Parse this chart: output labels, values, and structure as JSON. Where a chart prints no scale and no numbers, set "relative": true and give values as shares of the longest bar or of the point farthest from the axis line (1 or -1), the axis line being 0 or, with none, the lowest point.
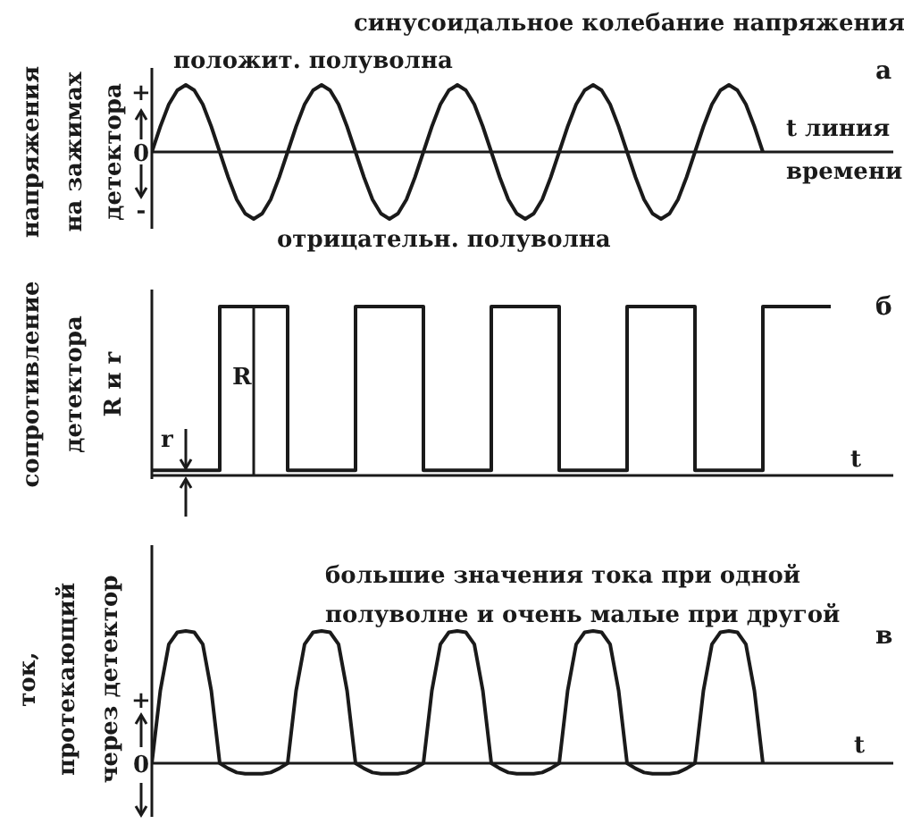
{
  "chart_data": [
    {
      "type": "line",
      "title": "синусоидальное колебание напряжения",
      "ylabel": "напряжения\nна зажимах\nдетектора",
      "xlabel": "t линия\nвремени",
      "relative": true,
      "annotations": [
        "а",
        "положит. полуволна",
        "отрицательн. полуволна",
        "+",
        "0",
        "-"
      ],
      "categories": [
        null,
        null,
        null,
        null,
        null,
        null,
        null,
        null,
        null,
        null,
        null,
        null,
        null,
        null,
        null,
        null,
        null,
        null,
        null,
        null,
        null,
        null,
        null,
        null,
        null,
        null,
        null,
        null,
        null,
        null,
        null,
        null,
        null,
        null,
        null,
        null,
        null,
        null,
        null,
        null,
        null,
        null,
        null,
        null,
        null,
        null,
        null,
        null,
        null,
        null,
        null,
        null,
        null,
        null,
        null,
        null,
        null,
        null,
        null,
        null,
        null,
        null,
        null,
        null,
        null,
        null,
        null,
        null,
        null,
        null,
        null,
        null,
        null
      ],
      "series": [
        {
          "color": "#1a1a1a",
          "values": [
            0,
            0.38,
            0.71,
            0.92,
            1,
            0.92,
            0.71,
            0.38,
            0,
            -0.38,
            -0.71,
            -0.92,
            -1,
            -0.92,
            -0.71,
            -0.38,
            0,
            0.38,
            0.71,
            0.92,
            1,
            0.92,
            0.71,
            0.38,
            0,
            -0.38,
            -0.71,
            -0.92,
            -1,
            -0.92,
            -0.71,
            -0.38,
            0,
            0.38,
            0.71,
            0.92,
            1,
            0.92,
            0.71,
            0.38,
            0,
            -0.38,
            -0.71,
            -0.92,
            -1,
            -0.92,
            -0.71,
            -0.38,
            0,
            0.38,
            0.71,
            0.92,
            1,
            0.92,
            0.71,
            0.38,
            0,
            -0.38,
            -0.71,
            -0.92,
            -1,
            -0.92,
            -0.71,
            -0.38,
            0,
            0.38,
            0.71,
            0.92,
            1,
            0.92,
            0.71,
            0.38,
            0
          ]
        }
      ]
    },
    {
      "type": "step",
      "ylabel": "сопротивление\nдетектора\nR и r",
      "xlabel": "t",
      "relative": true,
      "annotations": [
        "б",
        "R",
        "r"
      ],
      "categories": [
        null,
        null,
        null,
        null,
        null,
        null,
        null,
        null,
        null,
        null,
        null
      ],
      "series": [
        {
          "color": "#1a1a1a",
          "values": [
            0.03,
            1,
            0.03,
            1,
            0.03,
            1,
            0.03,
            1,
            0.03,
            1,
            1
          ]
        }
      ]
    },
    {
      "type": "line",
      "title": "большие значения тока при одной\nполуволне и очень малые при другой",
      "ylabel": "ток,\nпротекающий\nчерез детектор",
      "xlabel": "t",
      "relative": true,
      "annotations": [
        "в",
        "+",
        "0"
      ],
      "categories": [
        null,
        null,
        null,
        null,
        null,
        null,
        null,
        null,
        null,
        null,
        null,
        null,
        null,
        null,
        null,
        null,
        null,
        null,
        null,
        null,
        null,
        null,
        null,
        null,
        null,
        null,
        null,
        null,
        null,
        null,
        null,
        null,
        null,
        null,
        null,
        null,
        null,
        null,
        null,
        null,
        null,
        null,
        null,
        null,
        null,
        null,
        null,
        null,
        null,
        null,
        null,
        null,
        null,
        null,
        null,
        null,
        null,
        null,
        null,
        null,
        null,
        null,
        null,
        null,
        null,
        null,
        null,
        null,
        null,
        null,
        null,
        null,
        null
      ],
      "series": [
        {
          "color": "#1a1a1a",
          "values": [
            0,
            0.55,
            0.9,
            0.99,
            1,
            0.99,
            0.9,
            0.55,
            0,
            -0.04,
            -0.07,
            -0.08,
            -0.08,
            -0.08,
            -0.07,
            -0.04,
            0,
            0.55,
            0.9,
            0.99,
            1,
            0.99,
            0.9,
            0.55,
            0,
            -0.04,
            -0.07,
            -0.08,
            -0.08,
            -0.08,
            -0.07,
            -0.04,
            0,
            0.55,
            0.9,
            0.99,
            1,
            0.99,
            0.9,
            0.55,
            0,
            -0.04,
            -0.07,
            -0.08,
            -0.08,
            -0.08,
            -0.07,
            -0.04,
            0,
            0.55,
            0.9,
            0.99,
            1,
            0.99,
            0.9,
            0.55,
            0,
            -0.04,
            -0.07,
            -0.08,
            -0.08,
            -0.08,
            -0.07,
            -0.04,
            0,
            0.55,
            0.9,
            0.99,
            1,
            0.99,
            0.9,
            0.55,
            0
          ]
        }
      ]
    }
  ]
}
